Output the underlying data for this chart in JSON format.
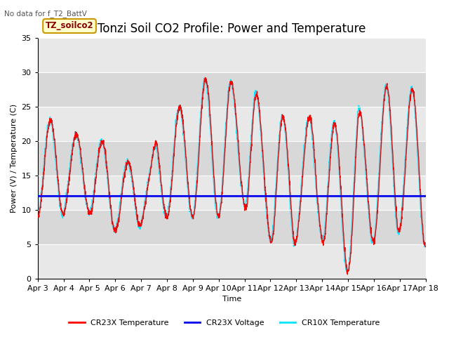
{
  "title": "Tonzi Soil CO2 Profile: Power and Temperature",
  "no_data_text": "No data for f_T2_BattV",
  "annotation_text": "TZ_soilco2",
  "xlabel": "Time",
  "ylabel": "Power (V) / Temperature (C)",
  "ylim": [
    0,
    35
  ],
  "voltage_value": 12.0,
  "cr23x_color": "#ff0000",
  "voltage_color": "#0000ee",
  "cr10x_color": "#00e5ff",
  "plot_bg_color": "#e8e8e8",
  "band_color": "#d8d8d8",
  "legend_labels": [
    "CR23X Temperature",
    "CR23X Voltage",
    "CR10X Temperature"
  ],
  "title_fontsize": 12,
  "label_fontsize": 8,
  "tick_fontsize": 8,
  "x_tick_labels": [
    "Apr 3",
    "Apr 4",
    "Apr 5",
    "Apr 6",
    "Apr 7",
    "Apr 8",
    "Apr 9",
    "Apr 10",
    "Apr 11",
    "Apr 12",
    "Apr 13",
    "Apr 14",
    "Apr 15",
    "Apr 16",
    "Apr 17",
    "Apr 18"
  ],
  "x_tick_positions": [
    0,
    1,
    2,
    3,
    4,
    5,
    6,
    7,
    8,
    9,
    10,
    11,
    12,
    13,
    14,
    15
  ]
}
